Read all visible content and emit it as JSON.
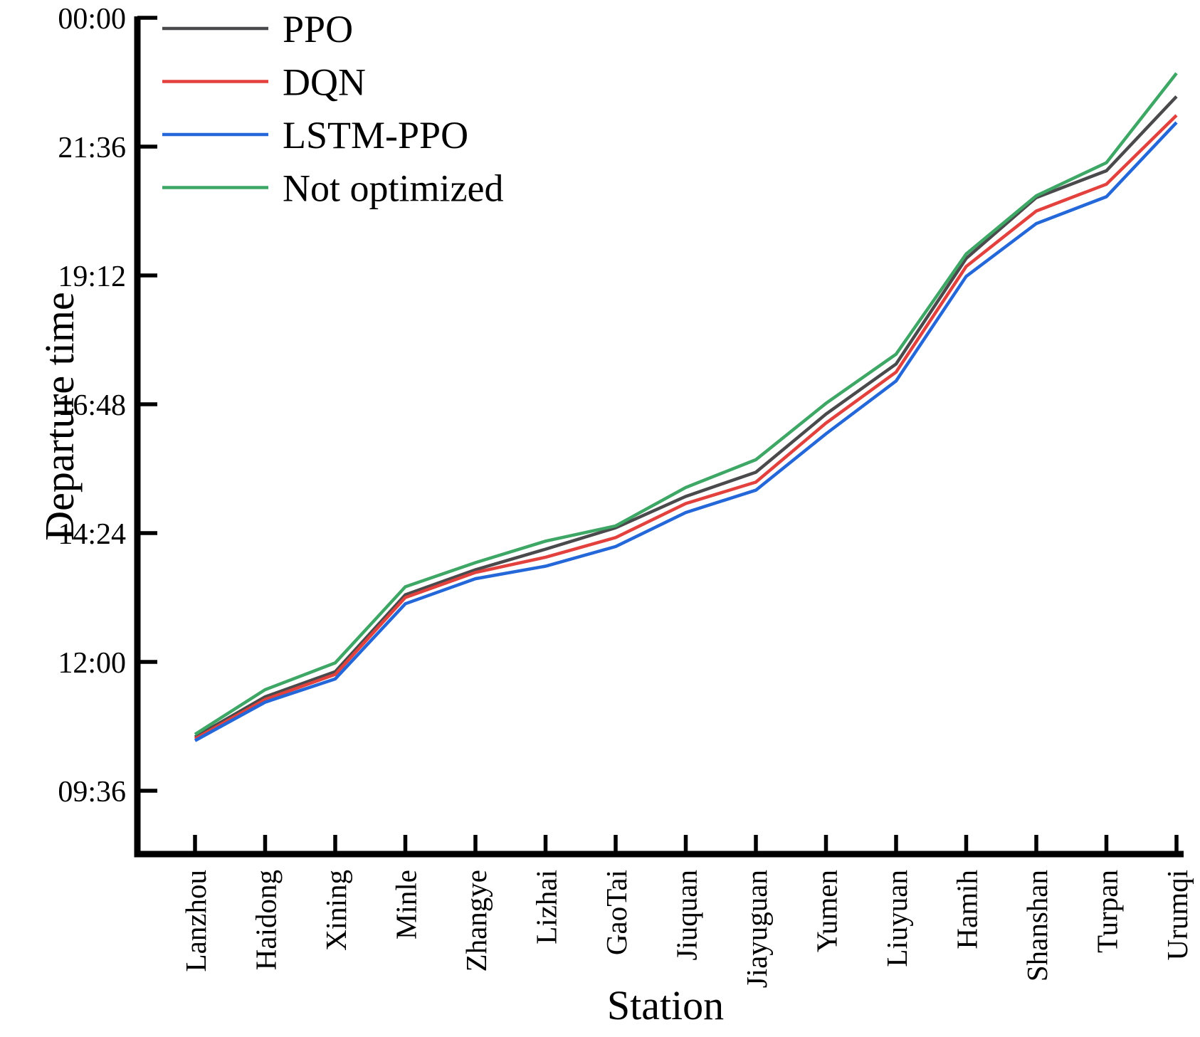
{
  "figure": {
    "background": "#ffffff",
    "axis_color": "#000000"
  },
  "chart_data": {
    "type": "line",
    "title": "",
    "xlabel": "Station",
    "ylabel": "Departure time",
    "x_categories": [
      "Lanzhou",
      "Haidong",
      "Xining",
      "Minle",
      "Zhangye",
      "Lizhai",
      "GaoTai",
      "Jiuquan",
      "Jiayuguan",
      "Yumen",
      "Liuyuan",
      "Hamih",
      "Shanshan",
      "Turpan",
      "Urumqi"
    ],
    "y_tick_labels": [
      "00:00",
      "21:36",
      "19:12",
      "16:48",
      "14:24",
      "12:00",
      "09:36"
    ],
    "y_axis_note": "time of day, 144-minute intervals, 09:36 at bottom tick to 00:00 (midnight) at top tick",
    "grid": "off",
    "legend_position": "upper left",
    "series": [
      {
        "name": "PPO",
        "color": "#4a4a4c",
        "times": [
          "10:36",
          "11:21",
          "11:49",
          "13:15",
          "13:43",
          "14:06",
          "14:30",
          "15:05",
          "15:32",
          "16:37",
          "17:33",
          "19:31",
          "20:39",
          "21:09",
          "22:32"
        ]
      },
      {
        "name": "DQN",
        "color": "#e2413d",
        "times": [
          "10:34",
          "11:18",
          "11:46",
          "13:12",
          "13:40",
          "13:57",
          "14:19",
          "14:57",
          "15:21",
          "16:27",
          "17:24",
          "19:22",
          "20:24",
          "20:54",
          "22:11"
        ]
      },
      {
        "name": "LSTM-PPO",
        "color": "#2467d8",
        "times": [
          "10:32",
          "11:15",
          "11:41",
          "13:05",
          "13:33",
          "13:47",
          "14:09",
          "14:47",
          "15:12",
          "16:15",
          "17:14",
          "19:11",
          "20:10",
          "20:40",
          "22:03"
        ]
      },
      {
        "name": "Not optimized",
        "color": "#3ea766",
        "times": [
          "10:39",
          "11:29",
          "11:59",
          "13:24",
          "13:51",
          "14:15",
          "14:32",
          "15:15",
          "15:46",
          "16:49",
          "17:44",
          "19:36",
          "20:41",
          "21:18",
          "22:58"
        ]
      }
    ]
  }
}
